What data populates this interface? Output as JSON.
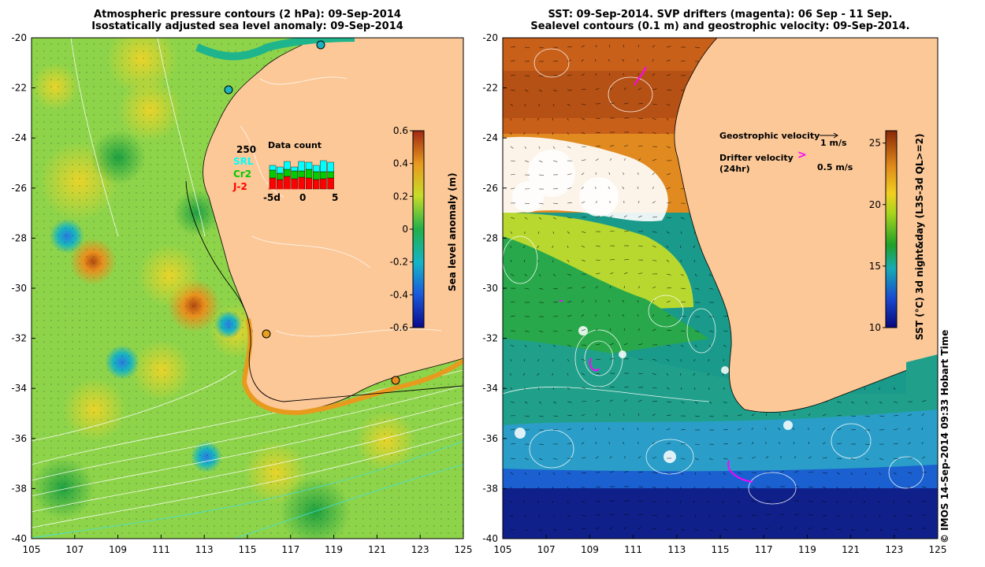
{
  "left_panel": {
    "title_line1": "Atmospheric pressure contours (2 hPa): 09-Sep-2014",
    "title_line2": "Isostatically adjusted sea level anomaly: 09-Sep-2014",
    "colorbar": {
      "label": "Sea level anomaly (m)",
      "ticks": [
        "0.6",
        "0.4",
        "0.2",
        "0",
        "-0.2",
        "-0.4",
        "-0.6"
      ],
      "min": -0.6,
      "max": 0.6
    },
    "inset": {
      "title": "Data count",
      "max_label": "250",
      "legend": [
        {
          "name": "SRL",
          "color": "#00ffff"
        },
        {
          "name": "Cr2",
          "color": "#00cc00"
        },
        {
          "name": "J-2",
          "color": "#ff0000"
        }
      ],
      "x_ticks": [
        "-5d",
        "0",
        "5"
      ]
    }
  },
  "right_panel": {
    "title_line1": "SST: 09-Sep-2014. SVP drifters (magenta): 06 Sep - 11 Sep.",
    "title_line2": "Sealevel contours (0.1 m) and geostrophic velocity: 09-Sep-2014.",
    "colorbar": {
      "label": "SST (°C) 3d night&day (L3S-3d QL>=2)",
      "ticks": [
        "25",
        "20",
        "15",
        "10"
      ],
      "min": 10,
      "max": 26
    },
    "legend": {
      "geostrophic_label": "Geostrophic velocity",
      "geostrophic_scale": "1 m/s",
      "drifter_label_line1": "Drifter velocity",
      "drifter_label_line2": "(24hr)",
      "drifter_scale": "0.5 m/s",
      "drifter_symbol": ">"
    }
  },
  "axes": {
    "lat_ticks": [
      "-20",
      "-22",
      "-24",
      "-26",
      "-28",
      "-30",
      "-32",
      "-34",
      "-36",
      "-38",
      "-40"
    ],
    "lon_ticks": [
      "105",
      "107",
      "109",
      "111",
      "113",
      "115",
      "117",
      "119",
      "121",
      "123",
      "125"
    ]
  },
  "copyright": "© IMOS 14-Sep-2014 09:33 Hobart Time"
}
